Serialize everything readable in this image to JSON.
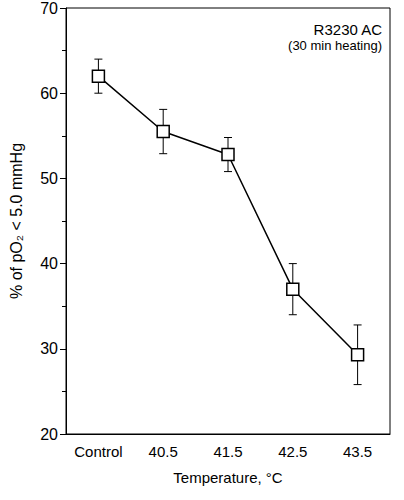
{
  "chart_data": {
    "type": "line",
    "annotation": [
      "R3230 AC",
      "(30 min heating)"
    ],
    "x_label": "Temperature, °C",
    "y_label": "% of pO₂ < 5.0 mmHg",
    "categories": [
      "Control",
      "40.5",
      "41.5",
      "42.5",
      "43.5"
    ],
    "values": [
      62,
      55.5,
      52.8,
      37,
      29.3
    ],
    "errors": [
      2,
      2.6,
      2,
      3,
      3.5
    ],
    "color": "#000000",
    "marker": "square",
    "line_style": "solid",
    "ylim": [
      20,
      70
    ],
    "yticks": [
      20,
      30,
      40,
      50,
      60,
      70
    ],
    "grid": false
  }
}
